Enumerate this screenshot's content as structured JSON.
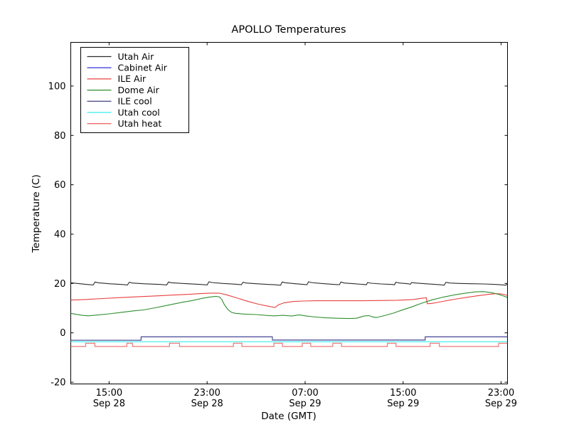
{
  "window": {
    "background": "#ffffff"
  },
  "chart_data": {
    "type": "line",
    "title": "APOLLO Temperatures",
    "xlabel": "Date (GMT)",
    "ylabel": "Temperature (C)",
    "grid": false,
    "legend_position": "upper left",
    "x_encoding": "hours since Sep 28 00:00 GMT",
    "xlim": [
      11.87,
      47.52
    ],
    "ylim": [
      -20.7,
      117.7
    ],
    "xticks": [
      {
        "value": 15,
        "time": "15:00",
        "date": "Sep 28"
      },
      {
        "value": 23,
        "time": "23:00",
        "date": "Sep 28"
      },
      {
        "value": 31,
        "time": "07:00",
        "date": "Sep 29"
      },
      {
        "value": 39,
        "time": "15:00",
        "date": "Sep 29"
      },
      {
        "value": 47,
        "time": "23:00",
        "date": "Sep 29"
      }
    ],
    "yticks": [
      -20,
      0,
      20,
      40,
      60,
      80,
      100
    ],
    "series": [
      {
        "name": "Utah Air",
        "color": "#2b2b2b",
        "points": [
          [
            11.87,
            20.3
          ],
          [
            12.4,
            20.0
          ],
          [
            13.2,
            19.6
          ],
          [
            13.7,
            19.4
          ],
          [
            13.85,
            20.6
          ],
          [
            14.1,
            20.3
          ],
          [
            15.0,
            19.9
          ],
          [
            16.0,
            19.6
          ],
          [
            16.5,
            19.4
          ],
          [
            16.65,
            20.5
          ],
          [
            16.9,
            20.2
          ],
          [
            17.8,
            19.9
          ],
          [
            19.2,
            19.6
          ],
          [
            19.7,
            19.4
          ],
          [
            19.85,
            20.6
          ],
          [
            20.1,
            20.3
          ],
          [
            21.0,
            20.0
          ],
          [
            22.5,
            19.6
          ],
          [
            23.0,
            19.4
          ],
          [
            23.15,
            20.7
          ],
          [
            23.4,
            20.4
          ],
          [
            24.3,
            20.0
          ],
          [
            25.4,
            19.7
          ],
          [
            25.8,
            19.5
          ],
          [
            25.92,
            20.5
          ],
          [
            26.2,
            20.2
          ],
          [
            27.0,
            19.9
          ],
          [
            28.5,
            19.5
          ],
          [
            29.0,
            19.3
          ],
          [
            29.12,
            20.6
          ],
          [
            29.4,
            20.3
          ],
          [
            30.2,
            19.9
          ],
          [
            30.9,
            19.6
          ],
          [
            31.15,
            19.5
          ],
          [
            31.28,
            20.7
          ],
          [
            31.5,
            20.4
          ],
          [
            32.3,
            20.0
          ],
          [
            33.4,
            19.6
          ],
          [
            33.8,
            19.5
          ],
          [
            33.92,
            20.6
          ],
          [
            34.2,
            20.2
          ],
          [
            35.0,
            19.9
          ],
          [
            35.8,
            19.6
          ],
          [
            36.0,
            19.5
          ],
          [
            36.1,
            20.4
          ],
          [
            36.4,
            20.1
          ],
          [
            37.2,
            19.8
          ],
          [
            38.1,
            19.6
          ],
          [
            38.3,
            19.5
          ],
          [
            38.4,
            20.5
          ],
          [
            38.7,
            20.2
          ],
          [
            39.4,
            19.9
          ],
          [
            39.6,
            19.7
          ],
          [
            39.7,
            20.4
          ],
          [
            40.0,
            20.2
          ],
          [
            40.8,
            19.9
          ],
          [
            42.0,
            19.5
          ],
          [
            42.35,
            19.3
          ],
          [
            42.5,
            20.5
          ],
          [
            42.8,
            20.2
          ],
          [
            43.6,
            20.0
          ],
          [
            44.6,
            19.9
          ],
          [
            45.6,
            19.8
          ],
          [
            46.6,
            19.6
          ],
          [
            47.2,
            19.4
          ],
          [
            47.35,
            19.3
          ],
          [
            47.5,
            19.7
          ]
        ]
      },
      {
        "name": "Cabinet Air",
        "color": "#4444dd",
        "points": [
          [
            11.87,
            -3.0
          ],
          [
            17.61,
            -3.0
          ],
          [
            17.61,
            -1.6
          ],
          [
            28.33,
            -1.6
          ],
          [
            28.33,
            -2.9
          ],
          [
            40.8,
            -2.9
          ],
          [
            40.8,
            -1.6
          ],
          [
            47.5,
            -1.6
          ]
        ]
      },
      {
        "name": "ILE Air",
        "color": "#e84040",
        "points": [
          [
            11.87,
            13.3
          ],
          [
            13.0,
            13.5
          ],
          [
            14.5,
            13.9
          ],
          [
            16.0,
            14.3
          ],
          [
            17.7,
            14.7
          ],
          [
            19.0,
            15.0
          ],
          [
            20.5,
            15.4
          ],
          [
            21.5,
            15.6
          ],
          [
            22.4,
            15.9
          ],
          [
            23.3,
            16.1
          ],
          [
            24.0,
            16.1
          ],
          [
            24.6,
            15.4
          ],
          [
            25.4,
            14.2
          ],
          [
            26.3,
            12.8
          ],
          [
            27.2,
            11.6
          ],
          [
            27.9,
            10.9
          ],
          [
            28.4,
            10.4
          ],
          [
            28.55,
            10.3
          ],
          [
            28.8,
            11.3
          ],
          [
            29.3,
            12.2
          ],
          [
            30.0,
            12.7
          ],
          [
            30.8,
            12.9
          ],
          [
            32.0,
            13.0
          ],
          [
            34.0,
            13.0
          ],
          [
            35.5,
            13.0
          ],
          [
            37.0,
            13.1
          ],
          [
            38.5,
            13.2
          ],
          [
            39.8,
            13.5
          ],
          [
            40.5,
            14.0
          ],
          [
            40.9,
            14.2
          ],
          [
            40.97,
            11.8
          ],
          [
            41.3,
            11.9
          ],
          [
            41.8,
            12.3
          ],
          [
            42.4,
            12.9
          ],
          [
            43.2,
            13.6
          ],
          [
            44.2,
            14.4
          ],
          [
            45.2,
            15.1
          ],
          [
            46.0,
            15.6
          ],
          [
            46.6,
            15.9
          ],
          [
            47.1,
            15.7
          ],
          [
            47.5,
            15.2
          ]
        ]
      },
      {
        "name": "Dome Air",
        "color": "#2f8f2f",
        "points": [
          [
            11.87,
            7.9
          ],
          [
            12.3,
            7.5
          ],
          [
            12.8,
            7.1
          ],
          [
            13.3,
            6.9
          ],
          [
            14.0,
            7.2
          ],
          [
            15.0,
            7.7
          ],
          [
            16.0,
            8.3
          ],
          [
            17.0,
            8.9
          ],
          [
            17.8,
            9.3
          ],
          [
            18.6,
            10.0
          ],
          [
            19.5,
            10.9
          ],
          [
            20.3,
            11.7
          ],
          [
            21.0,
            12.4
          ],
          [
            21.8,
            13.1
          ],
          [
            22.6,
            14.0
          ],
          [
            23.2,
            14.5
          ],
          [
            23.7,
            14.8
          ],
          [
            24.0,
            14.6
          ],
          [
            24.2,
            13.5
          ],
          [
            24.4,
            11.5
          ],
          [
            24.7,
            9.4
          ],
          [
            25.0,
            8.3
          ],
          [
            25.3,
            7.9
          ],
          [
            26.0,
            7.6
          ],
          [
            27.0,
            7.4
          ],
          [
            28.0,
            7.0
          ],
          [
            28.5,
            6.9
          ],
          [
            29.2,
            7.1
          ],
          [
            29.9,
            6.8
          ],
          [
            30.5,
            7.3
          ],
          [
            31.1,
            6.8
          ],
          [
            31.9,
            6.4
          ],
          [
            32.7,
            6.1
          ],
          [
            33.6,
            5.9
          ],
          [
            34.6,
            5.8
          ],
          [
            35.2,
            5.9
          ],
          [
            35.8,
            6.8
          ],
          [
            36.2,
            7.0
          ],
          [
            36.5,
            6.5
          ],
          [
            36.8,
            6.2
          ],
          [
            37.0,
            6.4
          ],
          [
            37.5,
            7.0
          ],
          [
            38.2,
            8.0
          ],
          [
            38.9,
            9.2
          ],
          [
            39.7,
            10.5
          ],
          [
            40.5,
            12.0
          ],
          [
            41.4,
            13.4
          ],
          [
            42.3,
            14.5
          ],
          [
            43.2,
            15.4
          ],
          [
            44.1,
            16.1
          ],
          [
            44.9,
            16.6
          ],
          [
            45.6,
            16.7
          ],
          [
            46.2,
            16.3
          ],
          [
            46.8,
            15.6
          ],
          [
            47.2,
            14.9
          ],
          [
            47.5,
            14.4
          ]
        ]
      },
      {
        "name": "ILE cool",
        "color": "#52528f",
        "points": [
          [
            11.87,
            -3.0
          ],
          [
            17.61,
            -3.0
          ],
          [
            17.61,
            -1.6
          ],
          [
            28.33,
            -1.6
          ],
          [
            28.33,
            -2.9
          ],
          [
            40.8,
            -2.9
          ],
          [
            40.8,
            -1.6
          ],
          [
            47.5,
            -1.6
          ]
        ]
      },
      {
        "name": "Utah cool",
        "color": "#33eeee",
        "points": [
          [
            11.87,
            -3.6
          ],
          [
            47.5,
            -3.6
          ]
        ]
      },
      {
        "name": "Utah heat",
        "color": "#ec6a6a",
        "points": [
          [
            11.87,
            -5.5
          ],
          [
            13.09,
            -5.5
          ],
          [
            13.09,
            -4.2
          ],
          [
            13.84,
            -4.2
          ],
          [
            13.84,
            -5.5
          ],
          [
            16.45,
            -5.5
          ],
          [
            16.45,
            -4.2
          ],
          [
            16.91,
            -4.2
          ],
          [
            16.91,
            -5.5
          ],
          [
            19.93,
            -5.5
          ],
          [
            19.93,
            -4.2
          ],
          [
            20.74,
            -4.2
          ],
          [
            20.74,
            -5.5
          ],
          [
            25.15,
            -5.5
          ],
          [
            25.15,
            -4.2
          ],
          [
            25.84,
            -4.2
          ],
          [
            25.84,
            -5.5
          ],
          [
            28.45,
            -5.5
          ],
          [
            28.45,
            -4.2
          ],
          [
            29.15,
            -4.2
          ],
          [
            29.15,
            -5.5
          ],
          [
            30.77,
            -5.5
          ],
          [
            30.77,
            -4.2
          ],
          [
            31.46,
            -4.2
          ],
          [
            31.46,
            -5.5
          ],
          [
            33.26,
            -5.5
          ],
          [
            33.26,
            -4.2
          ],
          [
            33.96,
            -4.2
          ],
          [
            33.96,
            -5.5
          ],
          [
            37.72,
            -5.5
          ],
          [
            37.72,
            -4.2
          ],
          [
            38.42,
            -4.2
          ],
          [
            38.42,
            -5.5
          ],
          [
            41.2,
            -5.5
          ],
          [
            41.2,
            -4.2
          ],
          [
            41.96,
            -4.2
          ],
          [
            41.96,
            -5.5
          ],
          [
            46.8,
            -5.5
          ],
          [
            46.8,
            -4.2
          ],
          [
            47.5,
            -4.2
          ]
        ]
      }
    ]
  }
}
